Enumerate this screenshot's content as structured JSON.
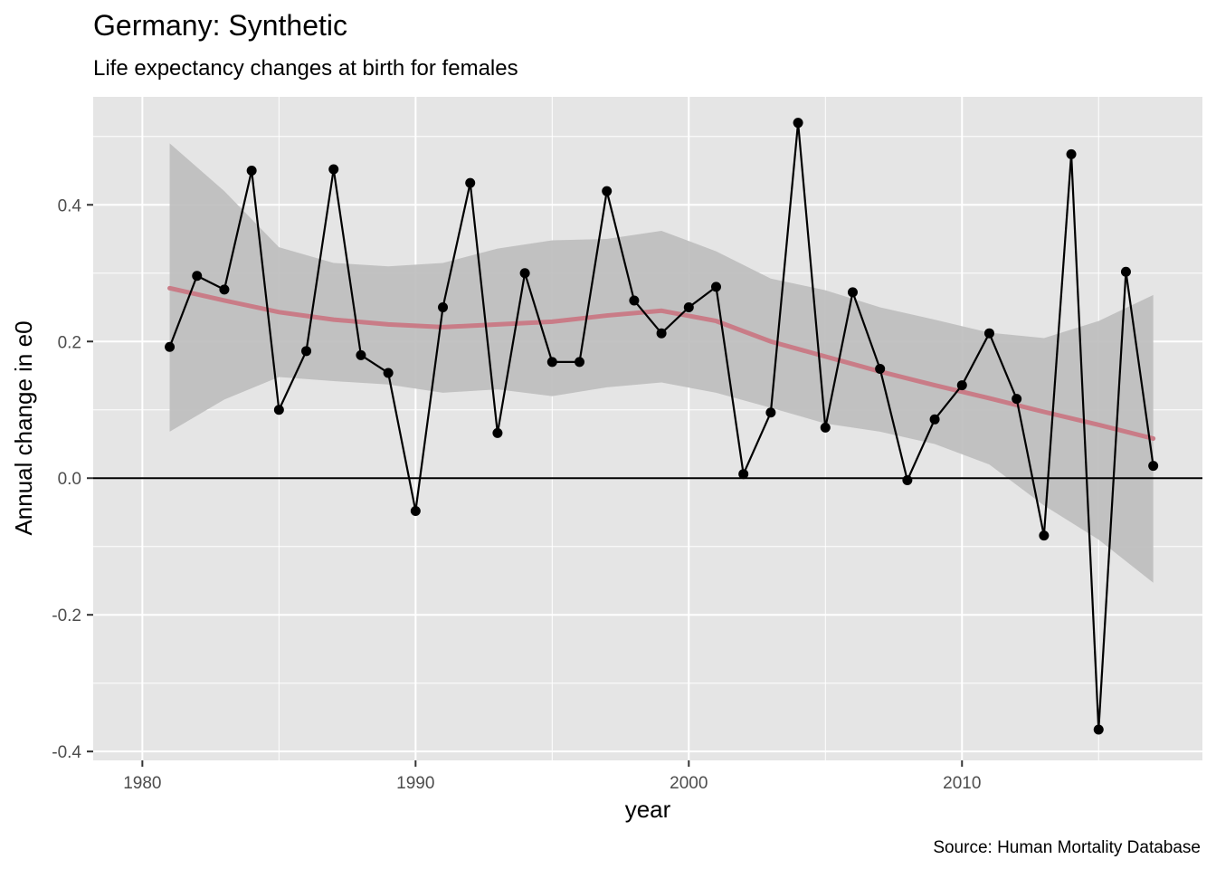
{
  "chart_data": {
    "type": "line",
    "title": "Germany: Synthetic",
    "subtitle": "Life expectancy changes at birth for females",
    "xlabel": "year",
    "ylabel": "Annual change in e0",
    "caption": "Source: Human Mortality Database",
    "xlim": [
      1978.2,
      2018.8
    ],
    "ylim": [
      -0.413,
      0.558
    ],
    "x_ticks": [
      1980,
      1990,
      2000,
      2010
    ],
    "x_tick_labels": [
      "1980",
      "1990",
      "2000",
      "2010"
    ],
    "y_ticks": [
      -0.4,
      -0.2,
      0.0,
      0.2,
      0.4
    ],
    "y_tick_labels": [
      "-0.4",
      "-0.2",
      "0.0",
      "0.2",
      "0.4"
    ],
    "grid": true,
    "reference_line_y": 0,
    "colors": {
      "panel_background": "#e5e5e5",
      "grid": "#ffffff",
      "line": "#000000",
      "points": "#000000",
      "smooth_line": "#c97c87",
      "confidence_band": "#bdbdbd",
      "reference_line": "#000000"
    },
    "series": [
      {
        "x": [
          1981,
          1982,
          1983,
          1984,
          1985,
          1986,
          1987,
          1988,
          1989,
          1990,
          1991,
          1992,
          1993,
          1994,
          1995,
          1996,
          1997,
          1998,
          1999,
          2000,
          2001,
          2002,
          2003,
          2004,
          2005,
          2006,
          2007,
          2008,
          2009,
          2010,
          2011,
          2012,
          2013,
          2014,
          2015,
          2016,
          2017
        ],
        "values": [
          0.192,
          0.296,
          0.276,
          0.45,
          0.1,
          0.186,
          0.452,
          0.18,
          0.154,
          -0.048,
          0.25,
          0.432,
          0.066,
          0.3,
          0.17,
          0.17,
          0.42,
          0.26,
          0.212,
          0.25,
          0.28,
          0.006,
          0.096,
          0.52,
          0.074,
          0.272,
          0.16,
          -0.003,
          0.086,
          0.136,
          0.212,
          0.116,
          -0.084,
          0.474,
          -0.368,
          0.302,
          0.018
        ]
      }
    ],
    "smooth": {
      "x": [
        1981,
        1983,
        1985,
        1987,
        1989,
        1991,
        1993,
        1995,
        1997,
        1999,
        2001,
        2003,
        2005,
        2007,
        2009,
        2011,
        2013,
        2015,
        2017
      ],
      "fit": [
        0.278,
        0.26,
        0.243,
        0.232,
        0.225,
        0.221,
        0.225,
        0.229,
        0.238,
        0.245,
        0.23,
        0.2,
        0.178,
        0.156,
        0.136,
        0.117,
        0.097,
        0.078,
        0.058
      ],
      "lower": [
        0.068,
        0.115,
        0.148,
        0.142,
        0.137,
        0.125,
        0.13,
        0.12,
        0.133,
        0.14,
        0.125,
        0.103,
        0.08,
        0.068,
        0.05,
        0.02,
        -0.04,
        -0.09,
        -0.153
      ],
      "upper": [
        0.49,
        0.42,
        0.338,
        0.315,
        0.31,
        0.315,
        0.336,
        0.348,
        0.35,
        0.362,
        0.332,
        0.292,
        0.275,
        0.25,
        0.232,
        0.213,
        0.205,
        0.23,
        0.268
      ]
    }
  }
}
